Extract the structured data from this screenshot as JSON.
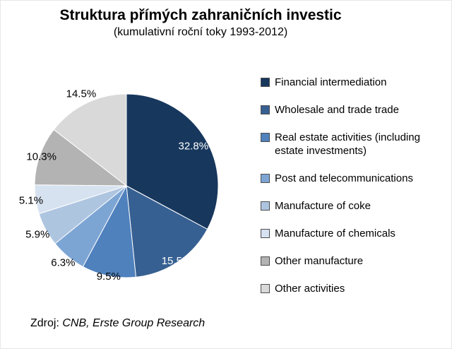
{
  "header": {
    "title": "Struktura přímých zahraničních investic",
    "subtitle": "(kumulativní roční toky 1993-2012)"
  },
  "source": {
    "prefix": "Zdroj: ",
    "text": "CNB, Erste Group Research"
  },
  "chart_data": {
    "type": "pie",
    "title": "Struktura přímých zahraničních investic (kumulativní roční toky 1993-2012)",
    "legend_position": "right",
    "start_angle_deg": 0,
    "direction": "clockwise",
    "value_unit": "%",
    "slices": [
      {
        "label": "Financial intermediation",
        "value": 32.8,
        "display": "32.8%",
        "color": "#17375D",
        "label_color": "#FFFFFF",
        "label_r": 0.85
      },
      {
        "label": "Wholesale and trade trade",
        "value": 15.5,
        "display": "15.5%",
        "color": "#376092",
        "label_color": "#FFFFFF",
        "label_r": 0.98
      },
      {
        "label": "Real estate activities (including estate investments)",
        "value": 9.5,
        "display": "9.5%",
        "color": "#4F81BD",
        "label_color": "#000000",
        "label_r": 1.0
      },
      {
        "label": "Post and telecommunications",
        "value": 6.3,
        "display": "6.3%",
        "color": "#7DA5D4",
        "label_color": "#000000",
        "label_r": 1.08
      },
      {
        "label": "Manufacture of coke",
        "value": 5.9,
        "display": "5.9%",
        "color": "#AEC5E0",
        "label_color": "#000000",
        "label_r": 1.1
      },
      {
        "label": "Manufacture of chemicals",
        "value": 5.1,
        "display": "5.1%",
        "color": "#D7E2F0",
        "label_color": "#000000",
        "label_r": 1.05
      },
      {
        "label": "Other manufacture",
        "value": 10.3,
        "display": "10.3%",
        "color": "#B3B3B3",
        "label_color": "#000000",
        "label_r": 0.98
      },
      {
        "label": "Other activities",
        "value": 14.5,
        "display": "14.5%",
        "color": "#D9D9D9",
        "label_color": "#000000",
        "label_r": 1.12
      }
    ]
  }
}
